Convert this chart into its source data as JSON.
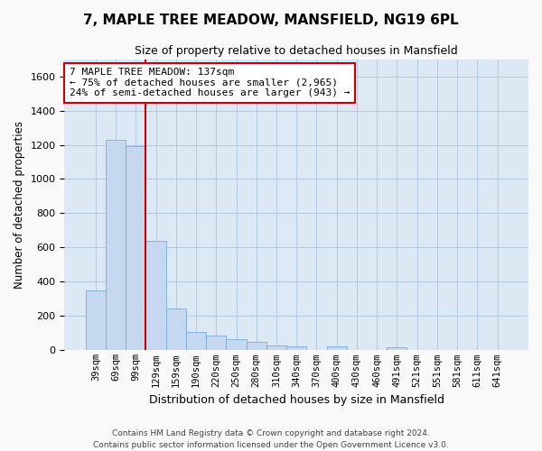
{
  "title": "7, MAPLE TREE MEADOW, MANSFIELD, NG19 6PL",
  "subtitle": "Size of property relative to detached houses in Mansfield",
  "xlabel": "Distribution of detached houses by size in Mansfield",
  "ylabel": "Number of detached properties",
  "categories": [
    "39sqm",
    "69sqm",
    "99sqm",
    "129sqm",
    "159sqm",
    "190sqm",
    "220sqm",
    "250sqm",
    "280sqm",
    "310sqm",
    "340sqm",
    "370sqm",
    "400sqm",
    "430sqm",
    "460sqm",
    "491sqm",
    "521sqm",
    "551sqm",
    "581sqm",
    "611sqm",
    "641sqm"
  ],
  "values": [
    350,
    1230,
    1190,
    640,
    245,
    105,
    85,
    65,
    50,
    30,
    25,
    0,
    25,
    0,
    0,
    20,
    0,
    0,
    0,
    0,
    0
  ],
  "bar_color": "#c5d8f0",
  "bar_edge_color": "#7aabd4",
  "ylim": [
    0,
    1700
  ],
  "yticks": [
    0,
    200,
    400,
    600,
    800,
    1000,
    1200,
    1400,
    1600
  ],
  "property_line_x": 2.5,
  "property_line_color": "#cc0000",
  "annotation_text": "7 MAPLE TREE MEADOW: 137sqm\n← 75% of detached houses are smaller (2,965)\n24% of semi-detached houses are larger (943) →",
  "annotation_box_color": "#ffffff",
  "annotation_box_edge": "#cc0000",
  "footer_line1": "Contains HM Land Registry data © Crown copyright and database right 2024.",
  "footer_line2": "Contains public sector information licensed under the Open Government Licence v3.0.",
  "fig_bg_color": "#f9f9f9",
  "plot_bg_color": "#dde8f5"
}
